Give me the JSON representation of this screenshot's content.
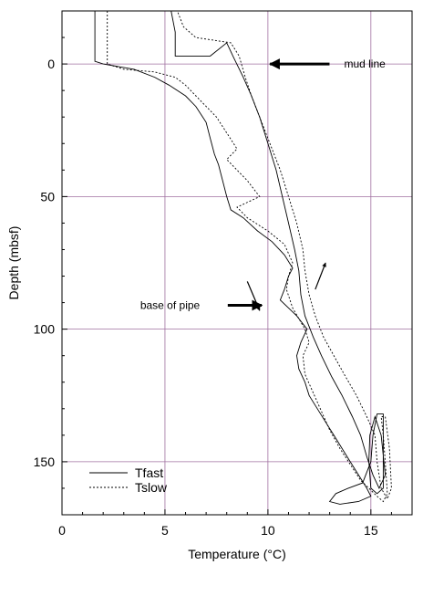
{
  "chart_data": {
    "type": "line",
    "xlabel": "Temperature (°C)",
    "ylabel": "Depth (mbsf)",
    "xlim": [
      0,
      17
    ],
    "ylim": [
      -20,
      170
    ],
    "y_inverted": true,
    "x_ticks": [
      0,
      5,
      10,
      15
    ],
    "y_ticks": [
      0,
      50,
      100,
      150
    ],
    "grid": true,
    "grid_color": "#a070a0",
    "legend_position": "bottom-left",
    "legend": [
      {
        "label": "Tfast",
        "style": "solid"
      },
      {
        "label": "Tslow",
        "style": "dotted"
      }
    ],
    "annotations": [
      {
        "text": "mud line",
        "x": 13.7,
        "y": 0,
        "arrow_to": [
          10.1,
          0
        ]
      },
      {
        "text": "base of pipe",
        "x": 3.8,
        "y": 91,
        "arrow_to": [
          9.7,
          91
        ]
      }
    ],
    "series": [
      {
        "style": "solid",
        "points": [
          [
            1.6,
            -20
          ],
          [
            1.6,
            -1
          ],
          [
            2.0,
            0
          ],
          [
            3.5,
            2
          ],
          [
            4.5,
            5
          ],
          [
            5.2,
            8
          ],
          [
            6.0,
            12
          ],
          [
            6.5,
            16
          ],
          [
            7.0,
            22
          ],
          [
            7.2,
            28
          ],
          [
            7.4,
            34
          ],
          [
            7.6,
            38
          ],
          [
            7.8,
            44
          ],
          [
            8.0,
            50
          ],
          [
            8.2,
            55
          ],
          [
            8.8,
            58
          ],
          [
            9.5,
            63
          ],
          [
            10.2,
            67
          ],
          [
            10.8,
            72
          ],
          [
            11.2,
            77
          ],
          [
            11.0,
            80
          ],
          [
            10.8,
            85
          ],
          [
            10.6,
            89
          ],
          [
            11.0,
            92
          ],
          [
            11.4,
            95
          ],
          [
            11.6,
            97
          ],
          [
            11.9,
            100
          ],
          [
            11.6,
            105
          ],
          [
            11.4,
            110
          ],
          [
            11.5,
            115
          ],
          [
            11.8,
            120
          ],
          [
            12.0,
            125
          ],
          [
            12.4,
            130
          ],
          [
            12.8,
            135
          ],
          [
            13.2,
            140
          ],
          [
            13.6,
            145
          ],
          [
            14.0,
            150
          ],
          [
            14.4,
            155
          ],
          [
            14.8,
            160
          ],
          [
            15.0,
            163
          ],
          [
            14.4,
            165
          ],
          [
            13.5,
            166
          ],
          [
            13.0,
            165
          ],
          [
            13.3,
            162
          ],
          [
            13.9,
            160
          ],
          [
            14.6,
            158
          ],
          [
            15.0,
            150
          ],
          [
            15.1,
            140
          ],
          [
            15.3,
            132
          ],
          [
            15.6,
            132
          ],
          [
            15.6,
            160
          ],
          [
            15.3,
            162
          ],
          [
            15.0,
            160
          ],
          [
            14.9,
            150
          ],
          [
            14.95,
            140
          ],
          [
            15.2,
            133
          ],
          [
            15.5,
            140
          ],
          [
            15.7,
            155
          ],
          [
            15.4,
            160
          ],
          [
            15.1,
            155
          ],
          [
            14.8,
            148
          ],
          [
            14.5,
            140
          ],
          [
            14.1,
            133
          ],
          [
            13.6,
            125
          ],
          [
            13.1,
            118
          ],
          [
            12.6,
            110
          ],
          [
            12.2,
            103
          ],
          [
            11.8,
            95
          ],
          [
            11.6,
            87
          ],
          [
            11.5,
            78
          ],
          [
            11.3,
            70
          ],
          [
            11.0,
            60
          ],
          [
            10.7,
            50
          ],
          [
            10.4,
            40
          ],
          [
            10.0,
            30
          ],
          [
            9.6,
            20
          ],
          [
            9.2,
            12
          ],
          [
            8.8,
            5
          ],
          [
            8.3,
            -3
          ],
          [
            8.0,
            -8
          ],
          [
            7.2,
            -3
          ],
          [
            5.5,
            -3
          ],
          [
            5.5,
            -12
          ],
          [
            5.3,
            -20
          ]
        ]
      },
      {
        "style": "dotted",
        "points": [
          [
            2.2,
            -20
          ],
          [
            2.2,
            0
          ],
          [
            3.0,
            2
          ],
          [
            4.5,
            3
          ],
          [
            5.5,
            5
          ],
          [
            6.0,
            8
          ],
          [
            6.5,
            12
          ],
          [
            7.0,
            16
          ],
          [
            7.5,
            20
          ],
          [
            8.0,
            26
          ],
          [
            8.5,
            32
          ],
          [
            8.0,
            36
          ],
          [
            8.5,
            40
          ],
          [
            9.0,
            44
          ],
          [
            9.6,
            50
          ],
          [
            8.5,
            54
          ],
          [
            9.0,
            58
          ],
          [
            10.0,
            63
          ],
          [
            10.8,
            68
          ],
          [
            11.2,
            75
          ],
          [
            11.0,
            80
          ],
          [
            10.9,
            85
          ],
          [
            11.2,
            92
          ],
          [
            11.8,
            100
          ],
          [
            12.0,
            105
          ],
          [
            11.7,
            110
          ],
          [
            11.8,
            117
          ],
          [
            12.2,
            124
          ],
          [
            12.6,
            131
          ],
          [
            13.0,
            138
          ],
          [
            13.5,
            145
          ],
          [
            14.0,
            151
          ],
          [
            14.5,
            157
          ],
          [
            14.9,
            160
          ],
          [
            15.3,
            163
          ],
          [
            15.6,
            165
          ],
          [
            15.8,
            162
          ],
          [
            15.7,
            150
          ],
          [
            15.6,
            140
          ],
          [
            15.5,
            133
          ],
          [
            15.7,
            133
          ],
          [
            15.9,
            145
          ],
          [
            16.0,
            160
          ],
          [
            15.8,
            164
          ],
          [
            15.5,
            160
          ],
          [
            15.3,
            150
          ],
          [
            15.2,
            140
          ],
          [
            14.8,
            133
          ],
          [
            14.3,
            125
          ],
          [
            13.7,
            117
          ],
          [
            13.2,
            110
          ],
          [
            12.7,
            103
          ],
          [
            12.3,
            95
          ],
          [
            12.0,
            87
          ],
          [
            11.8,
            78
          ],
          [
            11.7,
            70
          ],
          [
            11.4,
            60
          ],
          [
            11.0,
            50
          ],
          [
            10.6,
            40
          ],
          [
            10.1,
            30
          ],
          [
            9.6,
            20
          ],
          [
            9.2,
            12
          ],
          [
            8.9,
            5
          ],
          [
            8.6,
            -3
          ],
          [
            8.2,
            -8
          ],
          [
            6.5,
            -10
          ],
          [
            5.9,
            -14
          ],
          [
            5.6,
            -20
          ]
        ]
      }
    ]
  }
}
